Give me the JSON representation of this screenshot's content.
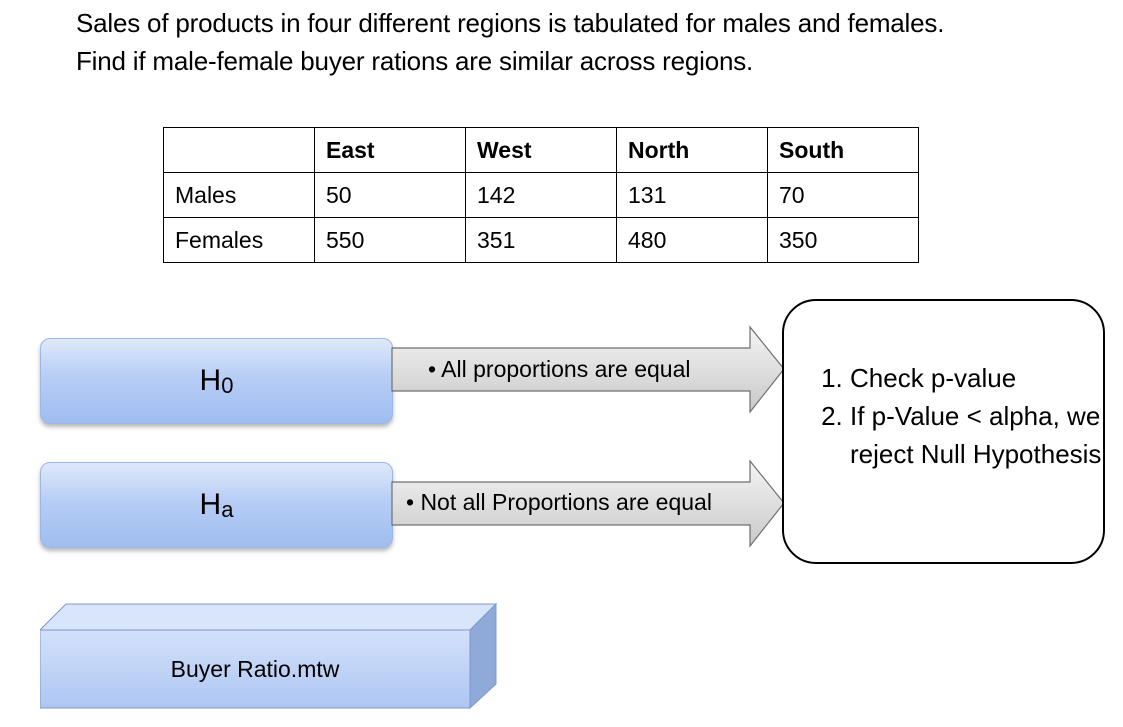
{
  "intro": {
    "line1": "Sales of products in four different regions is tabulated for males and females.",
    "line2": "Find if male-female buyer rations are similar across regions."
  },
  "table": {
    "headers": [
      "",
      "East",
      "West",
      "North",
      "South"
    ],
    "rows": [
      {
        "label": "Males",
        "values": [
          "50",
          "142",
          "131",
          "70"
        ]
      },
      {
        "label": "Females",
        "values": [
          "550",
          "351",
          "480",
          "350"
        ]
      }
    ]
  },
  "hypotheses": {
    "null": {
      "main": "H",
      "sub": "0",
      "statement": "• All proportions are equal"
    },
    "alternative": {
      "main": "H",
      "sub": "a",
      "statement": "• Not all Proportions are equal"
    }
  },
  "decision": {
    "steps": [
      "Check p-value",
      "If p-Value < alpha, we reject Null Hypothesis"
    ]
  },
  "file": {
    "name": "Buyer Ratio.mtw"
  },
  "colors": {
    "box_fill": "#b7cdf5",
    "box_border": "#9db6e2",
    "arrow_fill": "#dcdcdc",
    "file_front": "#c3d6f8",
    "file_top": "#d9e5fb",
    "file_side": "#8fa9d8"
  }
}
